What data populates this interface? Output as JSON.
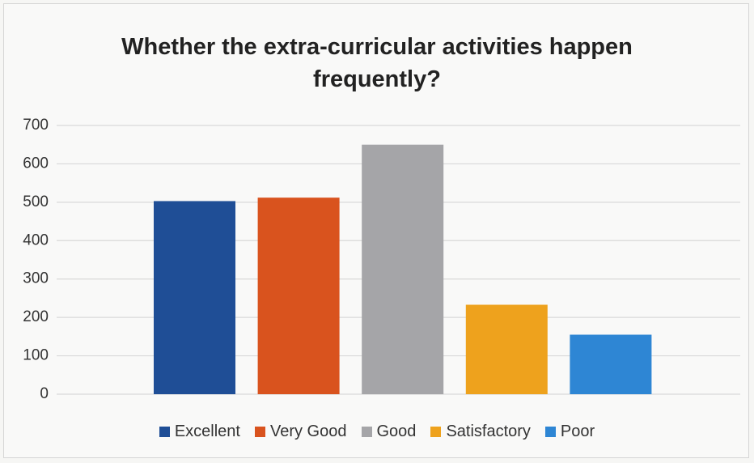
{
  "chart_data": {
    "type": "bar",
    "title": "Whether the extra-curricular activities happen frequently?",
    "categories": [
      null
    ],
    "series": [
      {
        "name": "Excellent",
        "color": "#1f4e96",
        "values": [
          503
        ]
      },
      {
        "name": "Very Good",
        "color": "#d9531e",
        "values": [
          512
        ]
      },
      {
        "name": "Good",
        "color": "#a5a5a8",
        "values": [
          650
        ]
      },
      {
        "name": "Satisfactory",
        "color": "#eea21d",
        "values": [
          233
        ]
      },
      {
        "name": "Poor",
        "color": "#2e86d4",
        "values": [
          155
        ]
      }
    ],
    "ylim": [
      0,
      700
    ],
    "yticks": [
      0,
      100,
      200,
      300,
      400,
      500,
      600,
      700
    ],
    "grid": true,
    "legend": "bottom"
  }
}
